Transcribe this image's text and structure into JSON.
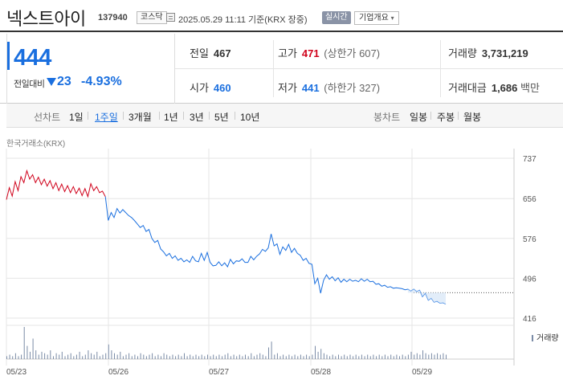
{
  "header": {
    "name": "넥스트아이",
    "code": "137940",
    "market": "코스닥",
    "timestamp": "2025.05.29 11:11 기준(KRX 장중)",
    "realtime": "실시간",
    "company_button": "기업개요"
  },
  "quote": {
    "price": "444",
    "change_label": "전일대비",
    "change": "23",
    "change_rate": "-4.93%",
    "prev_close_label": "전일",
    "prev_close": "467",
    "high_label": "고가",
    "high": "471",
    "upper_limit": "(상한가 607)",
    "volume_label": "거래량",
    "volume": "3,731,219",
    "open_label": "시가",
    "open": "460",
    "low_label": "저가",
    "low": "441",
    "lower_limit": "(하한가 327)",
    "value_label": "거래대금",
    "value": "1,686",
    "value_unit": "백만"
  },
  "toolbar": {
    "line_label": "선차트",
    "periods": [
      "1일",
      "1주일",
      "3개월",
      "1년",
      "3년",
      "5년",
      "10년"
    ],
    "active_period": "1주일",
    "candle_label": "봉차트",
    "candles": [
      "일봉",
      "주봉",
      "월봉"
    ]
  },
  "colors": {
    "up": "#d0021b",
    "down": "#1a6fdf",
    "grid": "#e6e6e6",
    "volume": "#7a8ba6"
  },
  "chart_data": {
    "type": "line",
    "source": "한국거래소(KRX)",
    "y_ticks": [
      737,
      656,
      576,
      496,
      416
    ],
    "ylim": [
      416,
      737
    ],
    "x_labels": [
      "05/23",
      "05/26",
      "05/27",
      "05/28",
      "05/29"
    ],
    "reference_price": 467,
    "volume_label": "거래량",
    "series": [
      {
        "values": [
          654,
          678,
          661,
          690,
          672,
          700,
          688,
          712,
          695,
          704,
          688,
          699,
          684,
          695,
          681,
          692,
          676,
          688,
          672,
          685,
          670,
          682,
          668,
          680,
          666,
          677,
          662,
          676,
          660,
          686,
          672,
          680,
          668,
          671,
          660,
          612,
          628,
          618,
          636,
          627,
          634,
          628,
          622,
          618,
          612,
          605,
          598,
          602,
          590,
          594,
          576,
          568,
          572,
          555,
          549,
          541,
          546,
          536,
          541,
          532,
          536,
          529,
          533,
          528,
          540,
          531,
          529,
          546,
          532,
          548,
          528,
          521,
          522,
          529,
          521,
          527,
          519,
          534,
          525,
          531,
          530,
          535,
          528,
          528,
          540,
          533,
          540,
          545,
          554,
          550,
          557,
          585,
          561,
          565,
          544,
          559,
          552,
          564,
          548,
          556,
          546,
          542,
          532,
          536,
          526,
          524,
          485,
          496,
          466,
          492,
          503,
          494,
          499,
          491,
          497,
          488,
          494,
          489,
          494,
          490,
          492,
          489,
          495,
          490,
          494,
          489,
          490,
          484,
          485,
          480,
          482,
          478,
          479,
          476,
          477,
          476,
          475,
          473,
          474,
          470,
          474,
          469,
          472,
          459,
          466,
          452,
          456,
          448,
          450,
          446,
          447,
          444
        ]
      }
    ],
    "volume": [
      2,
      3,
      2,
      4,
      2,
      3,
      22,
      9,
      5,
      14,
      6,
      3,
      5,
      4,
      3,
      6,
      2,
      4,
      3,
      5,
      2,
      3,
      4,
      2,
      3,
      5,
      2,
      3,
      6,
      4,
      3,
      5,
      2,
      3,
      4,
      10,
      6,
      4,
      3,
      5,
      2,
      3,
      4,
      2,
      3,
      2,
      4,
      3,
      2,
      3,
      4,
      2,
      3,
      2,
      4,
      3,
      2,
      3,
      2,
      3,
      2,
      4,
      2,
      3,
      2,
      3,
      2,
      3,
      2,
      3,
      2,
      3,
      2,
      3,
      2,
      3,
      4,
      2,
      3,
      2,
      3,
      2,
      3,
      2,
      4,
      2,
      3,
      4,
      3,
      2,
      8,
      12,
      3,
      4,
      2,
      3,
      2,
      3,
      2,
      3,
      2,
      3,
      2,
      3,
      2,
      3,
      9,
      5,
      7,
      4,
      3,
      2,
      3,
      2,
      3,
      2,
      3,
      2,
      3,
      2,
      3,
      2,
      3,
      2,
      3,
      2,
      3,
      2,
      3,
      2,
      3,
      2,
      3,
      2,
      3,
      2,
      3,
      2,
      3,
      5,
      3,
      4,
      3,
      6,
      4,
      3,
      4,
      3,
      4,
      3,
      4,
      3
    ]
  }
}
